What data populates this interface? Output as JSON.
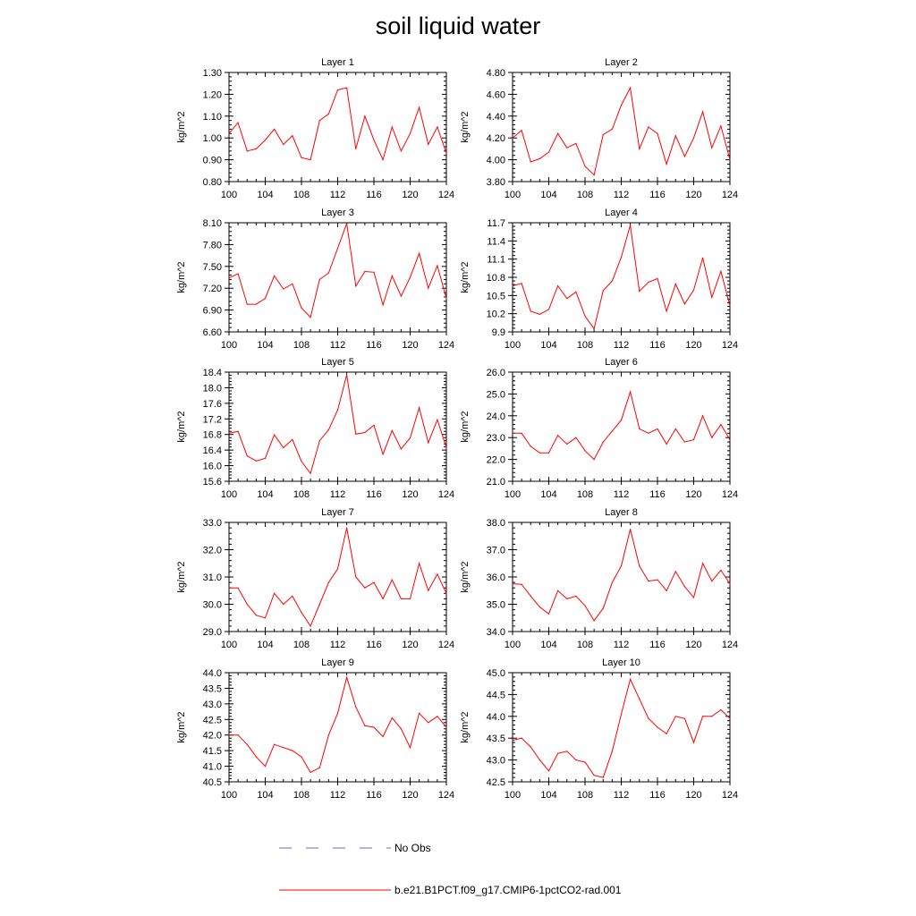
{
  "title": "soil liquid water",
  "legend": {
    "entries": [
      {
        "label": "No Obs",
        "color": "#6a6ad6",
        "style": "dashed"
      },
      {
        "label": "b.e21.B1PCT.f09_g17.CMIP6-1pctCO2-rad.001",
        "color": "#ff0000",
        "style": "solid"
      }
    ]
  },
  "chart_data": [
    {
      "type": "line",
      "title": "Layer 1",
      "ylabel": "kg/m^2",
      "xlim": [
        100,
        124
      ],
      "ylim": [
        0.8,
        1.3
      ],
      "xticks": [
        100,
        104,
        108,
        112,
        116,
        120,
        124
      ],
      "yticks": [
        0.8,
        0.9,
        1.0,
        1.1,
        1.2,
        1.3
      ],
      "ydecimals": 2,
      "x": [
        100,
        101,
        102,
        103,
        104,
        105,
        106,
        107,
        108,
        109,
        110,
        111,
        112,
        113,
        114,
        115,
        116,
        117,
        118,
        119,
        120,
        121,
        122,
        123,
        124
      ],
      "series": [
        {
          "name": "b.e21.B1PCT.f09_g17.CMIP6-1pctCO2-rad.001",
          "color": "#ff0000",
          "values": [
            1.02,
            1.07,
            0.94,
            0.95,
            0.99,
            1.04,
            0.97,
            1.01,
            0.91,
            0.9,
            1.08,
            1.11,
            1.22,
            1.23,
            0.95,
            1.1,
            0.99,
            0.9,
            1.05,
            0.94,
            1.02,
            1.14,
            0.97,
            1.05,
            0.93
          ]
        }
      ]
    },
    {
      "type": "line",
      "title": "Layer 2",
      "ylabel": "kg/m^2",
      "xlim": [
        100,
        124
      ],
      "ylim": [
        3.8,
        4.8
      ],
      "xticks": [
        100,
        104,
        108,
        112,
        116,
        120,
        124
      ],
      "yticks": [
        3.8,
        4.0,
        4.2,
        4.4,
        4.6,
        4.8
      ],
      "ydecimals": 2,
      "x": [
        100,
        101,
        102,
        103,
        104,
        105,
        106,
        107,
        108,
        109,
        110,
        111,
        112,
        113,
        114,
        115,
        116,
        117,
        118,
        119,
        120,
        121,
        122,
        123,
        124
      ],
      "series": [
        {
          "name": "b.e21.B1PCT.f09_g17.CMIP6-1pctCO2-rad.001",
          "color": "#ff0000",
          "values": [
            4.2,
            4.27,
            3.98,
            4.01,
            4.07,
            4.24,
            4.11,
            4.15,
            3.94,
            3.86,
            4.23,
            4.28,
            4.5,
            4.66,
            4.1,
            4.3,
            4.24,
            3.96,
            4.22,
            4.03,
            4.2,
            4.44,
            4.11,
            4.31,
            4.0
          ]
        }
      ]
    },
    {
      "type": "line",
      "title": "Layer 3",
      "ylabel": "kg/m^2",
      "xlim": [
        100,
        124
      ],
      "ylim": [
        6.6,
        8.1
      ],
      "xticks": [
        100,
        104,
        108,
        112,
        116,
        120,
        124
      ],
      "yticks": [
        6.6,
        6.9,
        7.2,
        7.5,
        7.8,
        8.1
      ],
      "ydecimals": 2,
      "x": [
        100,
        101,
        102,
        103,
        104,
        105,
        106,
        107,
        108,
        109,
        110,
        111,
        112,
        113,
        114,
        115,
        116,
        117,
        118,
        119,
        120,
        121,
        122,
        123,
        124
      ],
      "series": [
        {
          "name": "b.e21.B1PCT.f09_g17.CMIP6-1pctCO2-rad.001",
          "color": "#ff0000",
          "values": [
            7.34,
            7.4,
            6.98,
            6.98,
            7.06,
            7.37,
            7.19,
            7.26,
            6.93,
            6.8,
            7.32,
            7.41,
            7.75,
            8.09,
            7.23,
            7.43,
            7.42,
            6.97,
            7.37,
            7.09,
            7.35,
            7.68,
            7.2,
            7.51,
            7.06
          ]
        }
      ]
    },
    {
      "type": "line",
      "title": "Layer 4",
      "ylabel": "kg/m^2",
      "xlim": [
        100,
        124
      ],
      "ylim": [
        9.9,
        11.7
      ],
      "xticks": [
        100,
        104,
        108,
        112,
        116,
        120,
        124
      ],
      "yticks": [
        9.9,
        10.2,
        10.5,
        10.8,
        11.1,
        11.4,
        11.7
      ],
      "ydecimals": 1,
      "x": [
        100,
        101,
        102,
        103,
        104,
        105,
        106,
        107,
        108,
        109,
        110,
        111,
        112,
        113,
        114,
        115,
        116,
        117,
        118,
        119,
        120,
        121,
        122,
        123,
        124
      ],
      "series": [
        {
          "name": "b.e21.B1PCT.f09_g17.CMIP6-1pctCO2-rad.001",
          "color": "#ff0000",
          "values": [
            10.66,
            10.7,
            10.24,
            10.19,
            10.27,
            10.66,
            10.45,
            10.56,
            10.16,
            9.95,
            10.58,
            10.74,
            11.13,
            11.66,
            10.57,
            10.72,
            10.78,
            10.24,
            10.69,
            10.36,
            10.59,
            11.12,
            10.47,
            10.9,
            10.33
          ]
        }
      ]
    },
    {
      "type": "line",
      "title": "Layer 5",
      "ylabel": "kg/m^2",
      "xlim": [
        100,
        124
      ],
      "ylim": [
        15.6,
        18.4
      ],
      "xticks": [
        100,
        104,
        108,
        112,
        116,
        120,
        124
      ],
      "yticks": [
        15.6,
        16.0,
        16.4,
        16.8,
        17.2,
        17.6,
        18.0,
        18.4
      ],
      "ydecimals": 1,
      "x": [
        100,
        101,
        102,
        103,
        104,
        105,
        106,
        107,
        108,
        109,
        110,
        111,
        112,
        113,
        114,
        115,
        116,
        117,
        118,
        119,
        120,
        121,
        122,
        123,
        124
      ],
      "series": [
        {
          "name": "b.e21.B1PCT.f09_g17.CMIP6-1pctCO2-rad.001",
          "color": "#ff0000",
          "values": [
            16.83,
            16.88,
            16.25,
            16.12,
            16.19,
            16.79,
            16.46,
            16.67,
            16.11,
            15.8,
            16.64,
            16.92,
            17.43,
            18.33,
            16.81,
            16.85,
            17.04,
            16.29,
            16.9,
            16.43,
            16.71,
            17.49,
            16.59,
            17.18,
            16.46
          ]
        }
      ]
    },
    {
      "type": "line",
      "title": "Layer 6",
      "ylabel": "kg/m^2",
      "xlim": [
        100,
        124
      ],
      "ylim": [
        21.0,
        26.0
      ],
      "xticks": [
        100,
        104,
        108,
        112,
        116,
        120,
        124
      ],
      "yticks": [
        21.0,
        22.0,
        23.0,
        24.0,
        25.0,
        26.0
      ],
      "ydecimals": 1,
      "x": [
        100,
        101,
        102,
        103,
        104,
        105,
        106,
        107,
        108,
        109,
        110,
        111,
        112,
        113,
        114,
        115,
        116,
        117,
        118,
        119,
        120,
        121,
        122,
        123,
        124
      ],
      "series": [
        {
          "name": "b.e21.B1PCT.f09_g17.CMIP6-1pctCO2-rad.001",
          "color": "#ff0000",
          "values": [
            23.2,
            23.2,
            22.6,
            22.3,
            22.3,
            23.1,
            22.7,
            23.0,
            22.4,
            22.0,
            22.8,
            23.3,
            23.8,
            25.1,
            23.4,
            23.2,
            23.4,
            22.7,
            23.4,
            22.8,
            22.9,
            24.0,
            23.0,
            23.6,
            22.9
          ]
        }
      ]
    },
    {
      "type": "line",
      "title": "Layer 7",
      "ylabel": "kg/m^2",
      "xlim": [
        100,
        124
      ],
      "ylim": [
        29.0,
        33.0
      ],
      "xticks": [
        100,
        104,
        108,
        112,
        116,
        120,
        124
      ],
      "yticks": [
        29.0,
        30.0,
        31.0,
        32.0,
        33.0
      ],
      "ydecimals": 1,
      "x": [
        100,
        101,
        102,
        103,
        104,
        105,
        106,
        107,
        108,
        109,
        110,
        111,
        112,
        113,
        114,
        115,
        116,
        117,
        118,
        119,
        120,
        121,
        122,
        123,
        124
      ],
      "series": [
        {
          "name": "b.e21.B1PCT.f09_g17.CMIP6-1pctCO2-rad.001",
          "color": "#ff0000",
          "values": [
            30.6,
            30.6,
            30.0,
            29.6,
            29.5,
            30.4,
            30.0,
            30.3,
            29.7,
            29.2,
            30.0,
            30.8,
            31.3,
            32.8,
            31.0,
            30.6,
            30.8,
            30.2,
            30.9,
            30.2,
            30.2,
            31.5,
            30.5,
            31.1,
            30.4
          ]
        }
      ]
    },
    {
      "type": "line",
      "title": "Layer 8",
      "ylabel": "kg/m^2",
      "xlim": [
        100,
        124
      ],
      "ylim": [
        34.0,
        38.0
      ],
      "xticks": [
        100,
        104,
        108,
        112,
        116,
        120,
        124
      ],
      "yticks": [
        34.0,
        35.0,
        36.0,
        37.0,
        38.0
      ],
      "ydecimals": 1,
      "x": [
        100,
        101,
        102,
        103,
        104,
        105,
        106,
        107,
        108,
        109,
        110,
        111,
        112,
        113,
        114,
        115,
        116,
        117,
        118,
        119,
        120,
        121,
        122,
        123,
        124
      ],
      "series": [
        {
          "name": "b.e21.B1PCT.f09_g17.CMIP6-1pctCO2-rad.001",
          "color": "#ff0000",
          "values": [
            35.75,
            35.73,
            35.3,
            34.9,
            34.65,
            35.5,
            35.2,
            35.3,
            34.95,
            34.4,
            34.85,
            35.8,
            36.4,
            37.75,
            36.4,
            35.85,
            35.9,
            35.5,
            36.2,
            35.65,
            35.25,
            36.5,
            35.85,
            36.25,
            35.75
          ]
        }
      ]
    },
    {
      "type": "line",
      "title": "Layer 9",
      "ylabel": "kg/m^2",
      "xlim": [
        100,
        124
      ],
      "ylim": [
        40.5,
        44.0
      ],
      "xticks": [
        100,
        104,
        108,
        112,
        116,
        120,
        124
      ],
      "yticks": [
        40.5,
        41.0,
        41.5,
        42.0,
        42.5,
        43.0,
        43.5,
        44.0
      ],
      "ydecimals": 1,
      "x": [
        100,
        101,
        102,
        103,
        104,
        105,
        106,
        107,
        108,
        109,
        110,
        111,
        112,
        113,
        114,
        115,
        116,
        117,
        118,
        119,
        120,
        121,
        122,
        123,
        124
      ],
      "series": [
        {
          "name": "b.e21.B1PCT.f09_g17.CMIP6-1pctCO2-rad.001",
          "color": "#ff0000",
          "values": [
            42.0,
            42.0,
            41.7,
            41.3,
            41.0,
            41.7,
            41.6,
            41.5,
            41.3,
            40.8,
            40.95,
            42.0,
            42.7,
            43.85,
            42.9,
            42.3,
            42.25,
            41.95,
            42.55,
            42.2,
            41.6,
            42.7,
            42.4,
            42.6,
            42.25
          ]
        }
      ]
    },
    {
      "type": "line",
      "title": "Layer 10",
      "ylabel": "kg/m^2",
      "xlim": [
        100,
        124
      ],
      "ylim": [
        42.5,
        45.0
      ],
      "xticks": [
        100,
        104,
        108,
        112,
        116,
        120,
        124
      ],
      "yticks": [
        42.5,
        43.0,
        43.5,
        44.0,
        44.5,
        45.0
      ],
      "ydecimals": 1,
      "x": [
        100,
        101,
        102,
        103,
        104,
        105,
        106,
        107,
        108,
        109,
        110,
        111,
        112,
        113,
        114,
        115,
        116,
        117,
        118,
        119,
        120,
        121,
        122,
        123,
        124
      ],
      "series": [
        {
          "name": "b.e21.B1PCT.f09_g17.CMIP6-1pctCO2-rad.001",
          "color": "#ff0000",
          "values": [
            43.45,
            43.5,
            43.3,
            43.0,
            42.75,
            43.15,
            43.2,
            43.0,
            42.95,
            42.65,
            42.6,
            43.2,
            44.05,
            44.85,
            44.4,
            43.95,
            43.75,
            43.6,
            44.0,
            43.95,
            43.4,
            44.0,
            44.0,
            44.15,
            43.95
          ]
        }
      ]
    }
  ]
}
